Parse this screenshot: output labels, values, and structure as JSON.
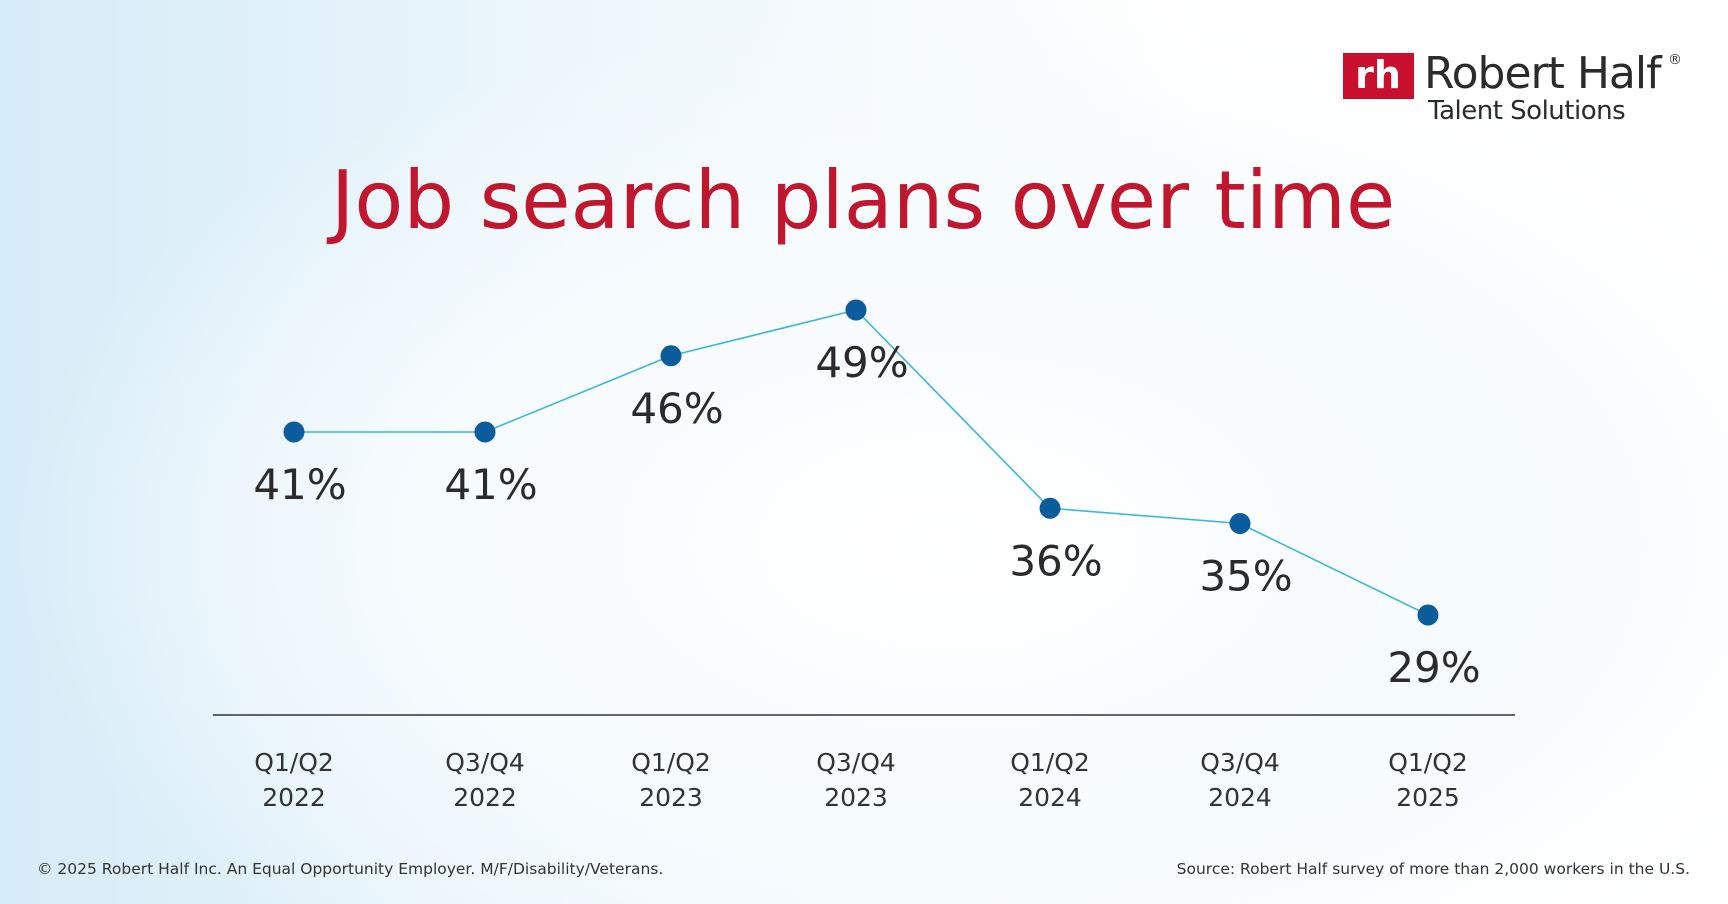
{
  "chart_data": {
    "type": "line",
    "title": "Job search plans over time",
    "categories": [
      "Q1/Q2 2022",
      "Q3/Q4 2022",
      "Q1/Q2 2023",
      "Q3/Q4 2023",
      "Q1/Q2 2024",
      "Q3/Q4 2024",
      "Q1/Q2 2025"
    ],
    "series": [
      {
        "color": "#3db5de",
        "marker_color": "#0a5c9c",
        "values": [
          41,
          41,
          46,
          49,
          36,
          35,
          29
        ],
        "value_labels": [
          "41%",
          "41%",
          "46%",
          "49%",
          "36%",
          "35%",
          "29%"
        ]
      }
    ]
  },
  "logo": {
    "mark": "rh",
    "name": "Robert Half",
    "registered": "®",
    "tagline": "Talent Solutions"
  },
  "footer": {
    "copyright": "© 2025 Robert Half Inc. An Equal Opportunity Employer. M/F/Disability/Veterans.",
    "source": "Source: Robert Half survey of more than 2,000 workers in the U.S."
  }
}
